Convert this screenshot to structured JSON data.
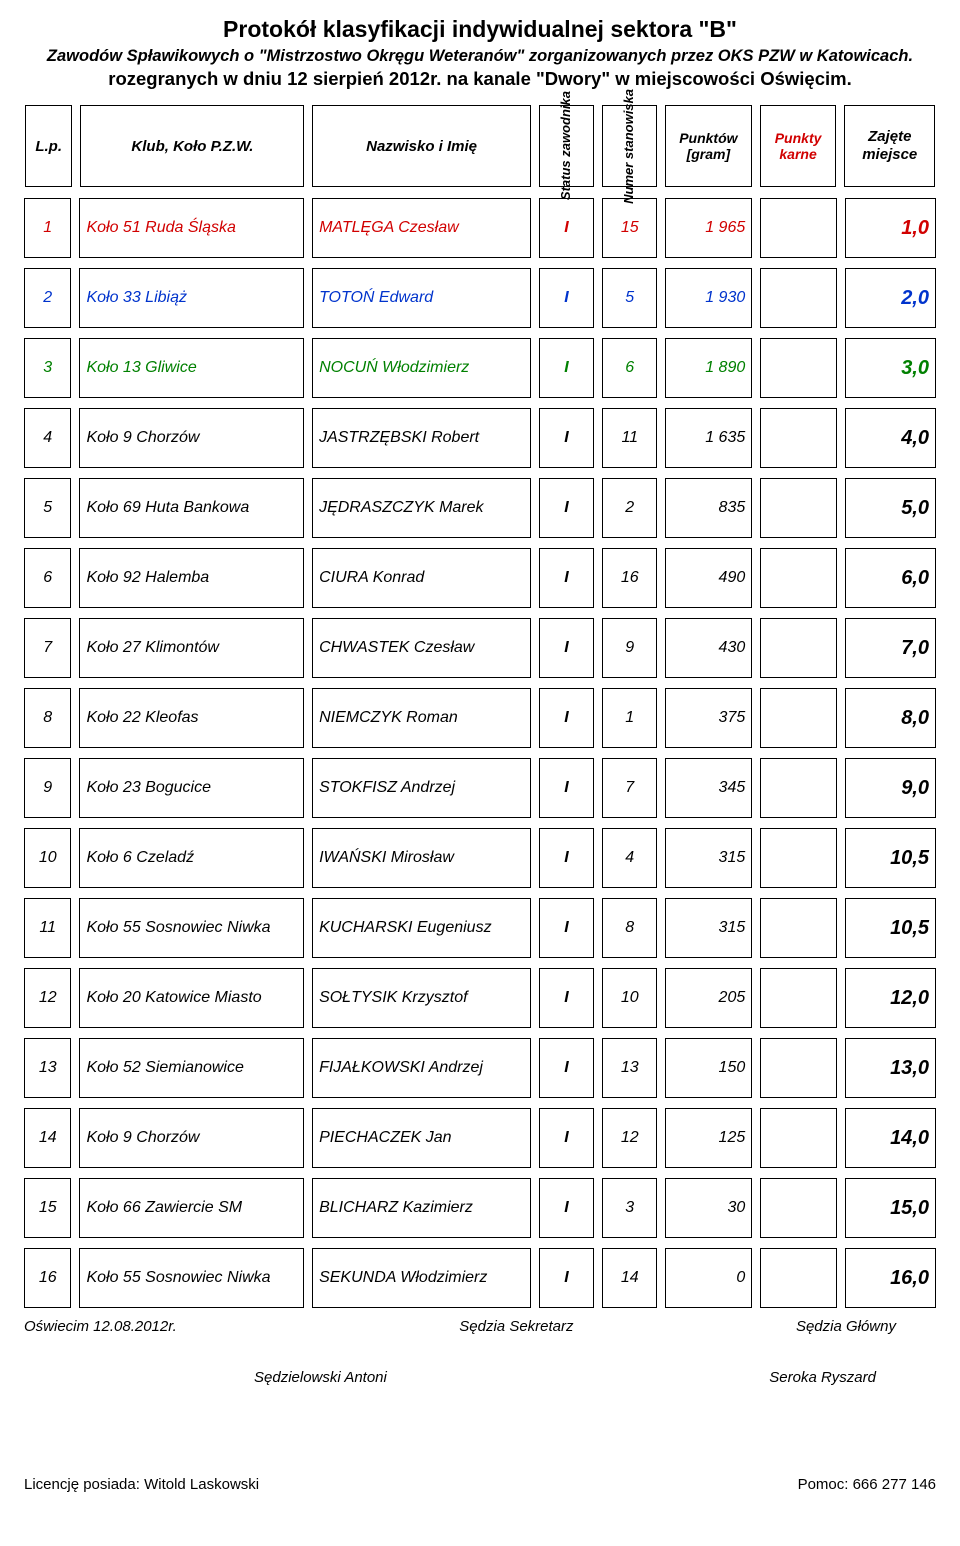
{
  "header": {
    "title1": "Protokół klasyfikacji indywidualnej sektora \"B\"",
    "title2": "Zawodów Spławikowych o  \"Mistrzostwo Okręgu Weteranów\" zorganizowanych przez OKS PZW w Katowicach.",
    "title3": "rozegranych w dniu 12 sierpień 2012r. na kanale \"Dwory\" w miejscowości Oświęcim."
  },
  "columns": {
    "lp": "L.p.",
    "klub": "Klub, Koło P.Z.W.",
    "nazwisko": "Nazwisko i Imię",
    "status": "Status zawodnika",
    "numer": "Numer stanowiska",
    "punktow": "Punktów [gram]",
    "karne": "Punkty karne",
    "zajete": "Zajęte miejsce"
  },
  "rows": [
    {
      "lp": "1",
      "klub": "Koło 51 Ruda Śląska",
      "nazw": "MATLĘGA Czesław",
      "sta": "I",
      "num": "15",
      "pkt": "1 965",
      "kar": "",
      "zaj": "1,0",
      "color": "red"
    },
    {
      "lp": "2",
      "klub": "Koło 33 Libiąż",
      "nazw": "TOTOŃ Edward",
      "sta": "I",
      "num": "5",
      "pkt": "1 930",
      "kar": "",
      "zaj": "2,0",
      "color": "blue"
    },
    {
      "lp": "3",
      "klub": "Koło 13 Gliwice",
      "nazw": "NOCUŃ Włodzimierz",
      "sta": "I",
      "num": "6",
      "pkt": "1 890",
      "kar": "",
      "zaj": "3,0",
      "color": "green"
    },
    {
      "lp": "4",
      "klub": "Koło 9 Chorzów",
      "nazw": "JASTRZĘBSKI Robert",
      "sta": "I",
      "num": "11",
      "pkt": "1 635",
      "kar": "",
      "zaj": "4,0",
      "color": ""
    },
    {
      "lp": "5",
      "klub": "Koło 69 Huta Bankowa",
      "nazw": "JĘDRASZCZYK Marek",
      "sta": "I",
      "num": "2",
      "pkt": "835",
      "kar": "",
      "zaj": "5,0",
      "color": ""
    },
    {
      "lp": "6",
      "klub": "Koło 92 Halemba",
      "nazw": "CIURA Konrad",
      "sta": "I",
      "num": "16",
      "pkt": "490",
      "kar": "",
      "zaj": "6,0",
      "color": ""
    },
    {
      "lp": "7",
      "klub": "Koło 27 Klimontów",
      "nazw": "CHWASTEK Czesław",
      "sta": "I",
      "num": "9",
      "pkt": "430",
      "kar": "",
      "zaj": "7,0",
      "color": ""
    },
    {
      "lp": "8",
      "klub": "Koło 22 Kleofas",
      "nazw": "NIEMCZYK Roman",
      "sta": "I",
      "num": "1",
      "pkt": "375",
      "kar": "",
      "zaj": "8,0",
      "color": ""
    },
    {
      "lp": "9",
      "klub": "Koło 23 Bogucice",
      "nazw": "STOKFISZ Andrzej",
      "sta": "I",
      "num": "7",
      "pkt": "345",
      "kar": "",
      "zaj": "9,0",
      "color": ""
    },
    {
      "lp": "10",
      "klub": "Koło 6 Czeladź",
      "nazw": "IWAŃSKI Mirosław",
      "sta": "I",
      "num": "4",
      "pkt": "315",
      "kar": "",
      "zaj": "10,5",
      "color": ""
    },
    {
      "lp": "11",
      "klub": "Koło 55 Sosnowiec Niwka",
      "nazw": "KUCHARSKI Eugeniusz",
      "sta": "I",
      "num": "8",
      "pkt": "315",
      "kar": "",
      "zaj": "10,5",
      "color": ""
    },
    {
      "lp": "12",
      "klub": "Koło 20 Katowice Miasto",
      "nazw": "SOŁTYSIK Krzysztof",
      "sta": "I",
      "num": "10",
      "pkt": "205",
      "kar": "",
      "zaj": "12,0",
      "color": ""
    },
    {
      "lp": "13",
      "klub": "Koło 52 Siemianowice",
      "nazw": "FIJAŁKOWSKI Andrzej",
      "sta": "I",
      "num": "13",
      "pkt": "150",
      "kar": "",
      "zaj": "13,0",
      "color": ""
    },
    {
      "lp": "14",
      "klub": "Koło 9 Chorzów",
      "nazw": "PIECHACZEK Jan",
      "sta": "I",
      "num": "12",
      "pkt": "125",
      "kar": "",
      "zaj": "14,0",
      "color": ""
    },
    {
      "lp": "15",
      "klub": "Koło 66 Zawiercie SM",
      "nazw": "BLICHARZ Kazimierz",
      "sta": "I",
      "num": "3",
      "pkt": "30",
      "kar": "",
      "zaj": "15,0",
      "color": ""
    },
    {
      "lp": "16",
      "klub": "Koło 55 Sosnowiec Niwka",
      "nazw": "SEKUNDA Włodzimierz",
      "sta": "I",
      "num": "14",
      "pkt": "0",
      "kar": "",
      "zaj": "16,0",
      "color": ""
    }
  ],
  "footer": {
    "date": "Oświecim 12.08.2012r.",
    "sekretarz_label": "Sędzia Sekretarz",
    "glowny_label": "Sędzia Główny",
    "sekretarz_name": "Sędzielowski Antoni",
    "glowny_name": "Seroka Ryszard",
    "licencja": "Licencję posiada: Witold Laskowski",
    "pomoc": "Pomoc: 666 277 146"
  }
}
